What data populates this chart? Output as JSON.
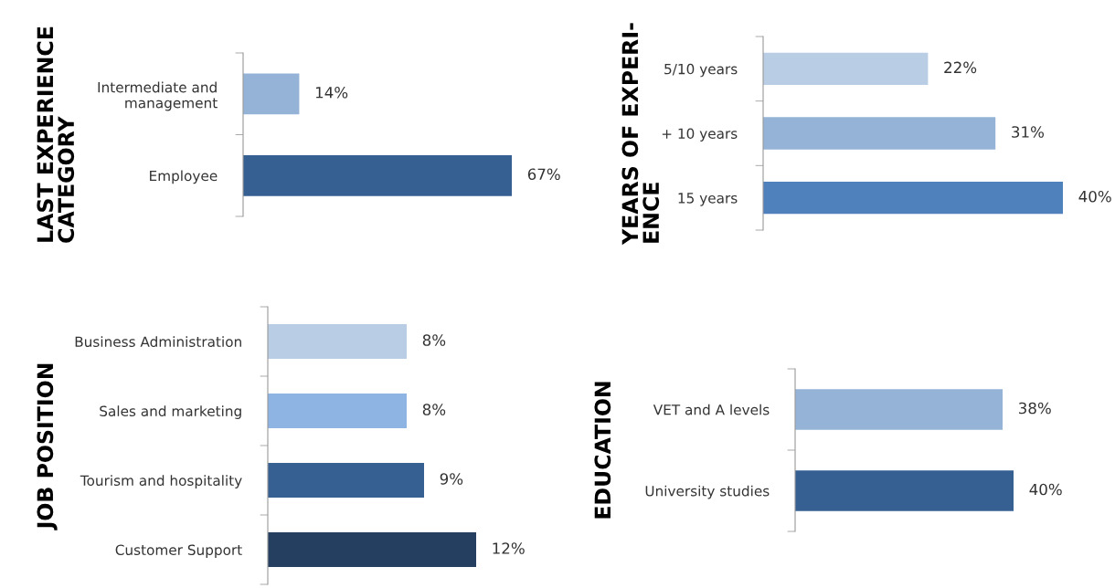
{
  "chart_data": [
    {
      "type": "bar",
      "orientation": "horizontal",
      "title": "LAST EXPERIENCE\nCATEGORY",
      "tick_labels": "y",
      "grid": false,
      "legend": false,
      "categories": [
        "Intermediate and\nmanagement",
        "Employee"
      ],
      "values": [
        14,
        67
      ],
      "value_labels": [
        "14%",
        "67%"
      ],
      "colors": [
        "#95b3d7",
        "#366092"
      ]
    },
    {
      "type": "bar",
      "orientation": "horizontal",
      "title": "YEARS OF EXPERI-\nENCE",
      "tick_labels": "y",
      "grid": false,
      "legend": false,
      "categories": [
        "5/10 years",
        "+ 10 years",
        "15 years"
      ],
      "values": [
        22,
        31,
        40
      ],
      "value_labels": [
        "22%",
        "31%",
        "40%"
      ],
      "colors": [
        "#b9cde5",
        "#95b3d7",
        "#4f81bd"
      ]
    },
    {
      "type": "bar",
      "orientation": "horizontal",
      "title": "JOB POSITION",
      "tick_labels": "y",
      "grid": false,
      "legend": false,
      "categories": [
        "Business Administration",
        "Sales and marketing",
        "Tourism and hospitality",
        "Customer Support"
      ],
      "values": [
        8,
        8,
        9,
        12
      ],
      "value_labels": [
        "8%",
        "8%",
        "9%",
        "12%"
      ],
      "colors": [
        "#b9cde5",
        "#8db4e2",
        "#366092",
        "#243f60"
      ]
    },
    {
      "type": "bar",
      "orientation": "horizontal",
      "title": "EDUCATION",
      "tick_labels": "y",
      "grid": false,
      "legend": false,
      "categories": [
        "VET and A levels",
        "University studies"
      ],
      "values": [
        38,
        40
      ],
      "value_labels": [
        "38%",
        "40%"
      ],
      "colors": [
        "#95b3d7",
        "#366092"
      ]
    }
  ]
}
